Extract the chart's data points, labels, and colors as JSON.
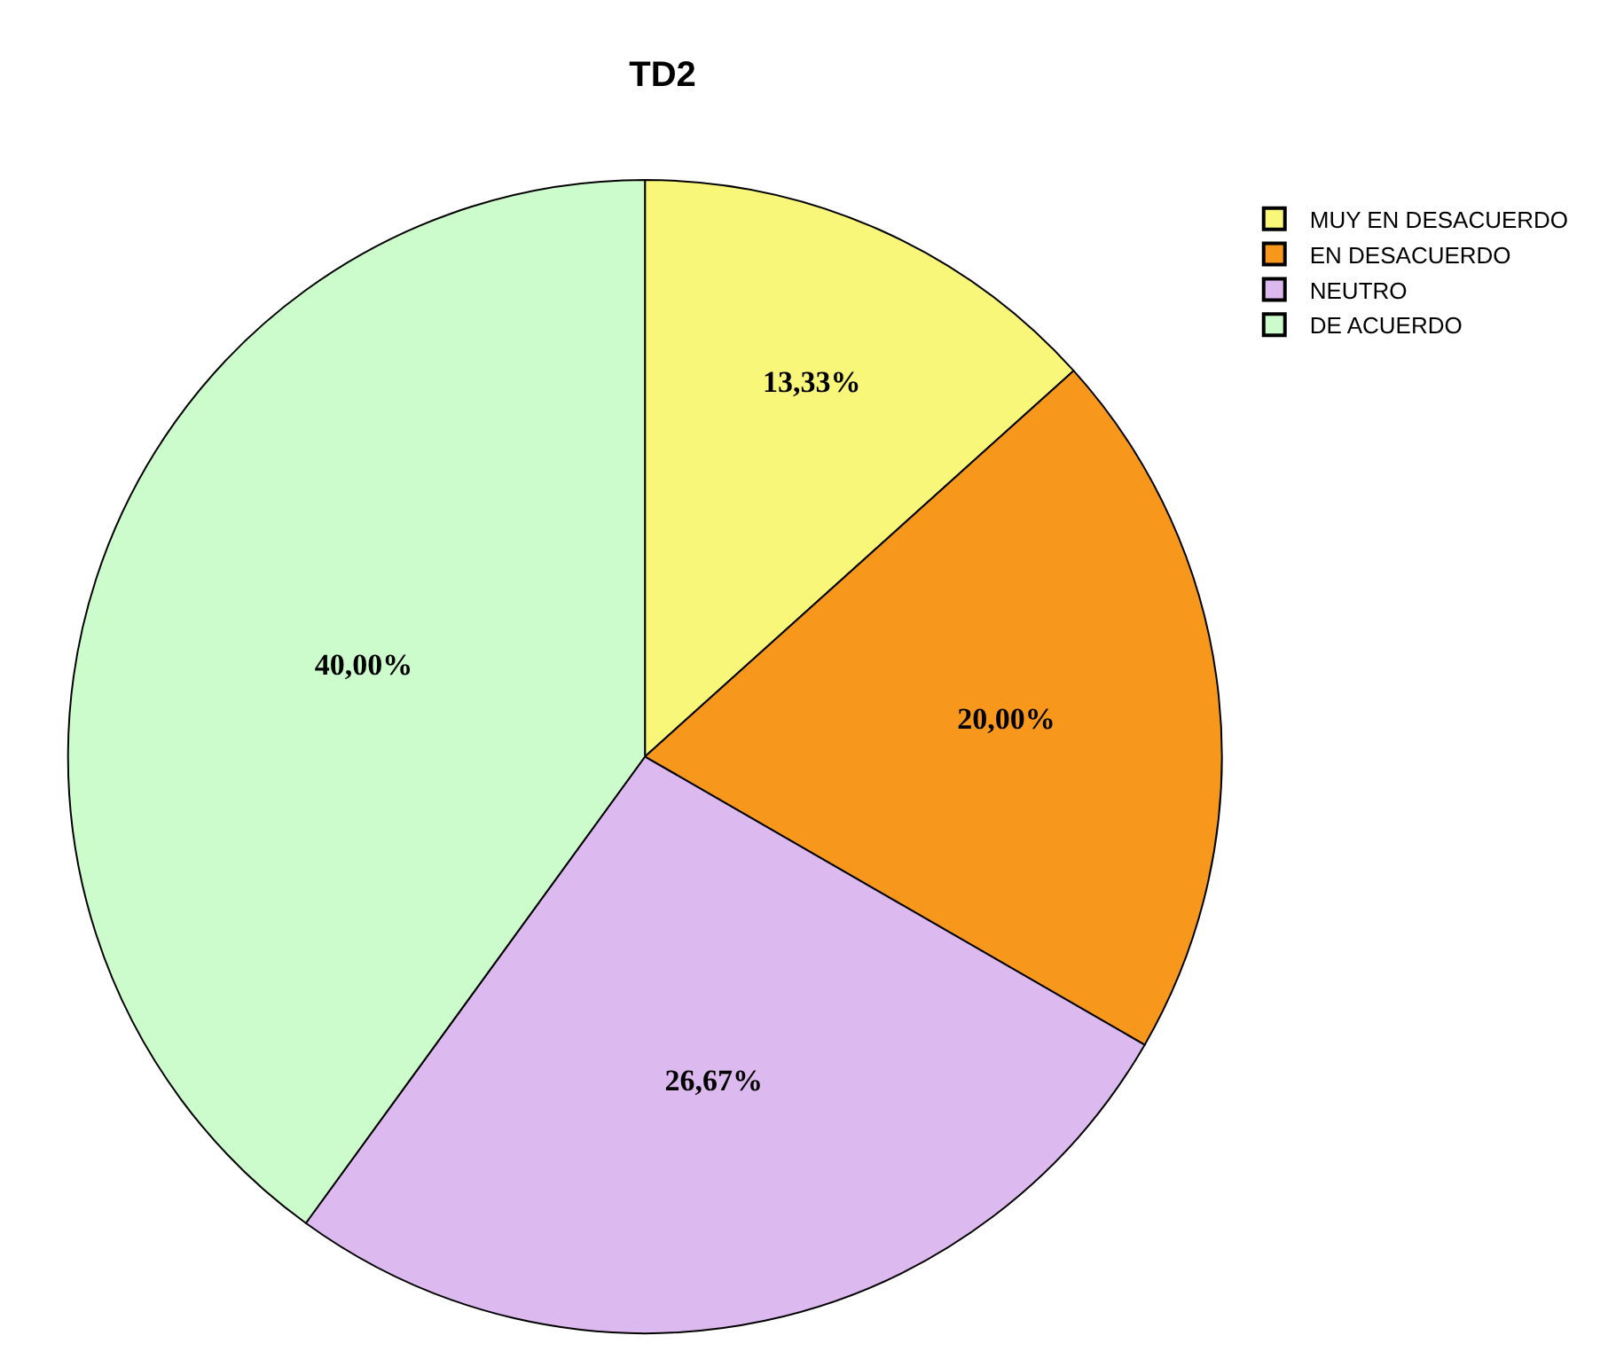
{
  "chart_data": {
    "type": "pie",
    "title": "TD2",
    "categories": [
      "MUY EN DESACUERDO",
      "EN DESACUERDO",
      "NEUTRO",
      "DE ACUERDO"
    ],
    "values": [
      13.33,
      20.0,
      26.67,
      40.0
    ],
    "colors": [
      "#f9f77a",
      "#f7981d",
      "#dcb9ef",
      "#ccfccc"
    ],
    "value_labels": [
      "13,33%",
      "20,00%",
      "26,67%",
      "40,00%"
    ],
    "legend": "top right"
  }
}
